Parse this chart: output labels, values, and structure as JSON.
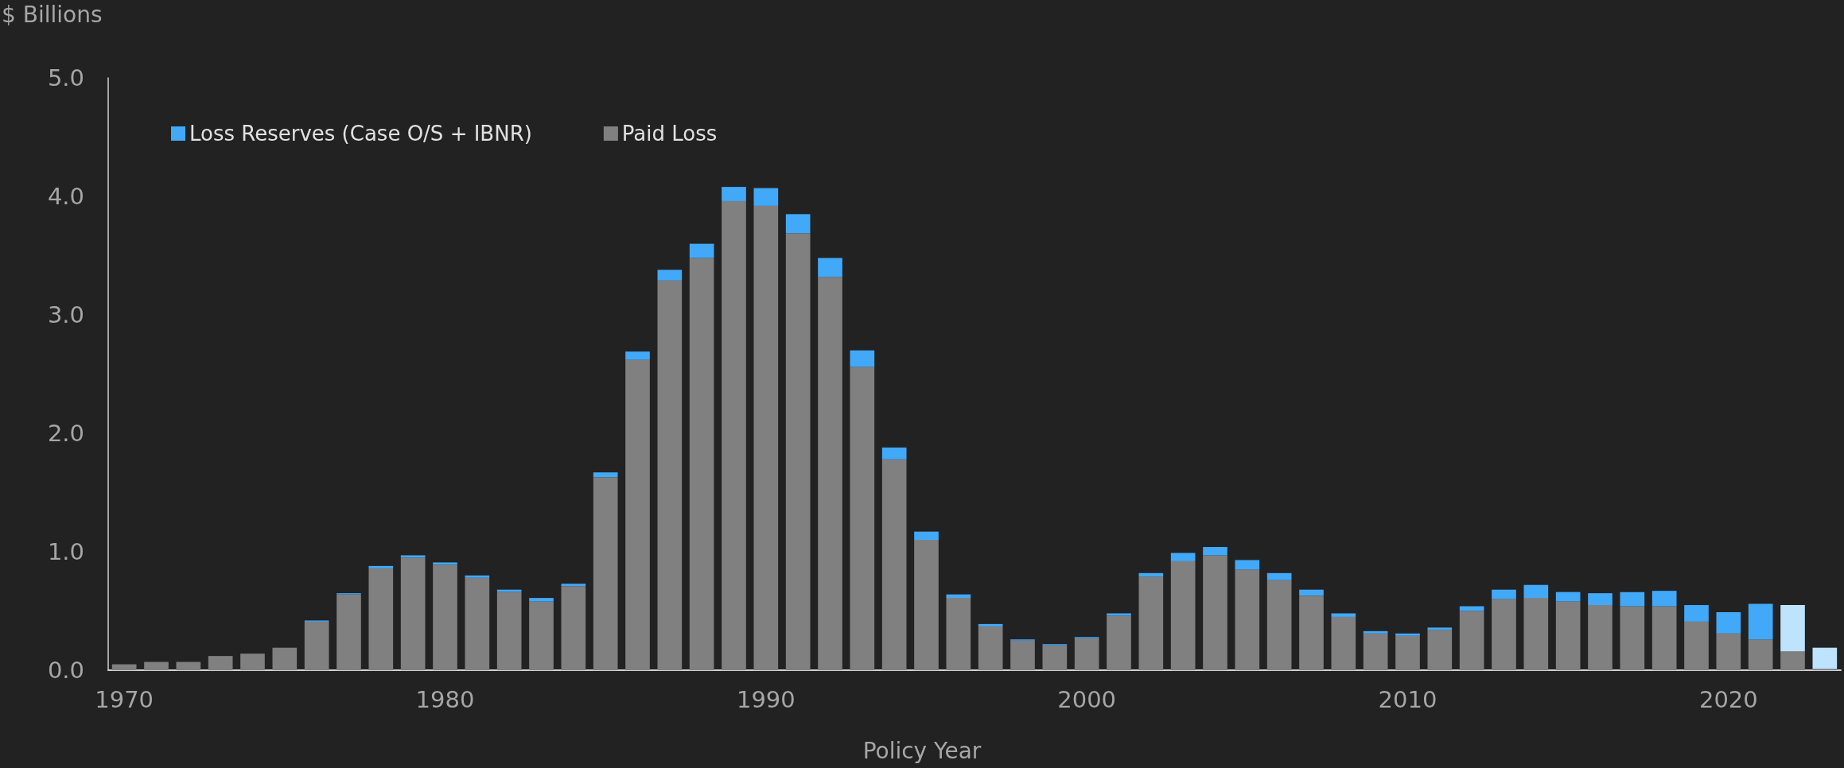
{
  "chart_data": {
    "type": "bar",
    "stacked": true,
    "xlabel": "Policy Year",
    "ylabel": "$ Billions",
    "categories": [
      "1970",
      null,
      null,
      null,
      null,
      null,
      null,
      null,
      null,
      null,
      "1980",
      null,
      null,
      null,
      null,
      null,
      null,
      null,
      null,
      null,
      "1990",
      null,
      null,
      null,
      null,
      null,
      null,
      null,
      null,
      null,
      "2000",
      null,
      null,
      null,
      null,
      null,
      null,
      null,
      null,
      null,
      "2010",
      null,
      null,
      null,
      null,
      null,
      null,
      null,
      null,
      null,
      "2020",
      null,
      null,
      null
    ],
    "series": [
      {
        "name": "Paid Loss",
        "color": "#808080",
        "values": [
          0.05,
          0.07,
          0.07,
          0.12,
          0.14,
          0.19,
          0.41,
          0.64,
          0.86,
          0.95,
          0.89,
          0.78,
          0.66,
          0.58,
          0.71,
          1.63,
          2.62,
          3.29,
          3.48,
          3.96,
          3.92,
          3.69,
          3.32,
          2.56,
          1.78,
          1.1,
          0.61,
          0.37,
          0.25,
          0.21,
          0.27,
          0.46,
          0.79,
          0.92,
          0.97,
          0.85,
          0.76,
          0.63,
          0.45,
          0.31,
          0.29,
          0.34,
          0.5,
          0.6,
          0.61,
          0.58,
          0.55,
          0.54,
          0.54,
          0.41,
          0.31,
          0.26,
          0.16,
          0.01
        ]
      },
      {
        "name": "Loss Reserves (Case O/S + IBNR)",
        "color": "#42a9f9",
        "colors": [
          "#42a9f9",
          "#42a9f9",
          "#42a9f9",
          "#42a9f9",
          "#42a9f9",
          "#42a9f9",
          "#42a9f9",
          "#42a9f9",
          "#42a9f9",
          "#42a9f9",
          "#42a9f9",
          "#42a9f9",
          "#42a9f9",
          "#42a9f9",
          "#42a9f9",
          "#42a9f9",
          "#42a9f9",
          "#42a9f9",
          "#42a9f9",
          "#42a9f9",
          "#42a9f9",
          "#42a9f9",
          "#42a9f9",
          "#42a9f9",
          "#42a9f9",
          "#42a9f9",
          "#42a9f9",
          "#42a9f9",
          "#42a9f9",
          "#42a9f9",
          "#42a9f9",
          "#42a9f9",
          "#42a9f9",
          "#42a9f9",
          "#42a9f9",
          "#42a9f9",
          "#42a9f9",
          "#42a9f9",
          "#42a9f9",
          "#42a9f9",
          "#42a9f9",
          "#42a9f9",
          "#42a9f9",
          "#42a9f9",
          "#42a9f9",
          "#42a9f9",
          "#42a9f9",
          "#42a9f9",
          "#42a9f9",
          "#42a9f9",
          "#42a9f9",
          "#42a9f9",
          "#bde3ff",
          "#bde3ff"
        ],
        "values": [
          0,
          0,
          0,
          0,
          0,
          0,
          0.01,
          0.01,
          0.02,
          0.02,
          0.02,
          0.02,
          0.02,
          0.03,
          0.02,
          0.04,
          0.07,
          0.09,
          0.12,
          0.12,
          0.15,
          0.16,
          0.16,
          0.14,
          0.1,
          0.07,
          0.03,
          0.02,
          0.01,
          0.01,
          0.01,
          0.02,
          0.03,
          0.07,
          0.07,
          0.08,
          0.06,
          0.05,
          0.03,
          0.02,
          0.02,
          0.02,
          0.04,
          0.08,
          0.11,
          0.08,
          0.1,
          0.12,
          0.13,
          0.14,
          0.18,
          0.3,
          0.39,
          0.18
        ]
      }
    ],
    "ylim": [
      0,
      5
    ],
    "yticks": [
      {
        "value": 0,
        "label": "0.0"
      },
      {
        "value": 1,
        "label": "1.0"
      },
      {
        "value": 2,
        "label": "2.0"
      },
      {
        "value": 3,
        "label": "3.0"
      },
      {
        "value": 4,
        "label": "4.0"
      },
      {
        "value": 5,
        "label": "5.0"
      }
    ],
    "grid": false,
    "legend": "top left"
  }
}
